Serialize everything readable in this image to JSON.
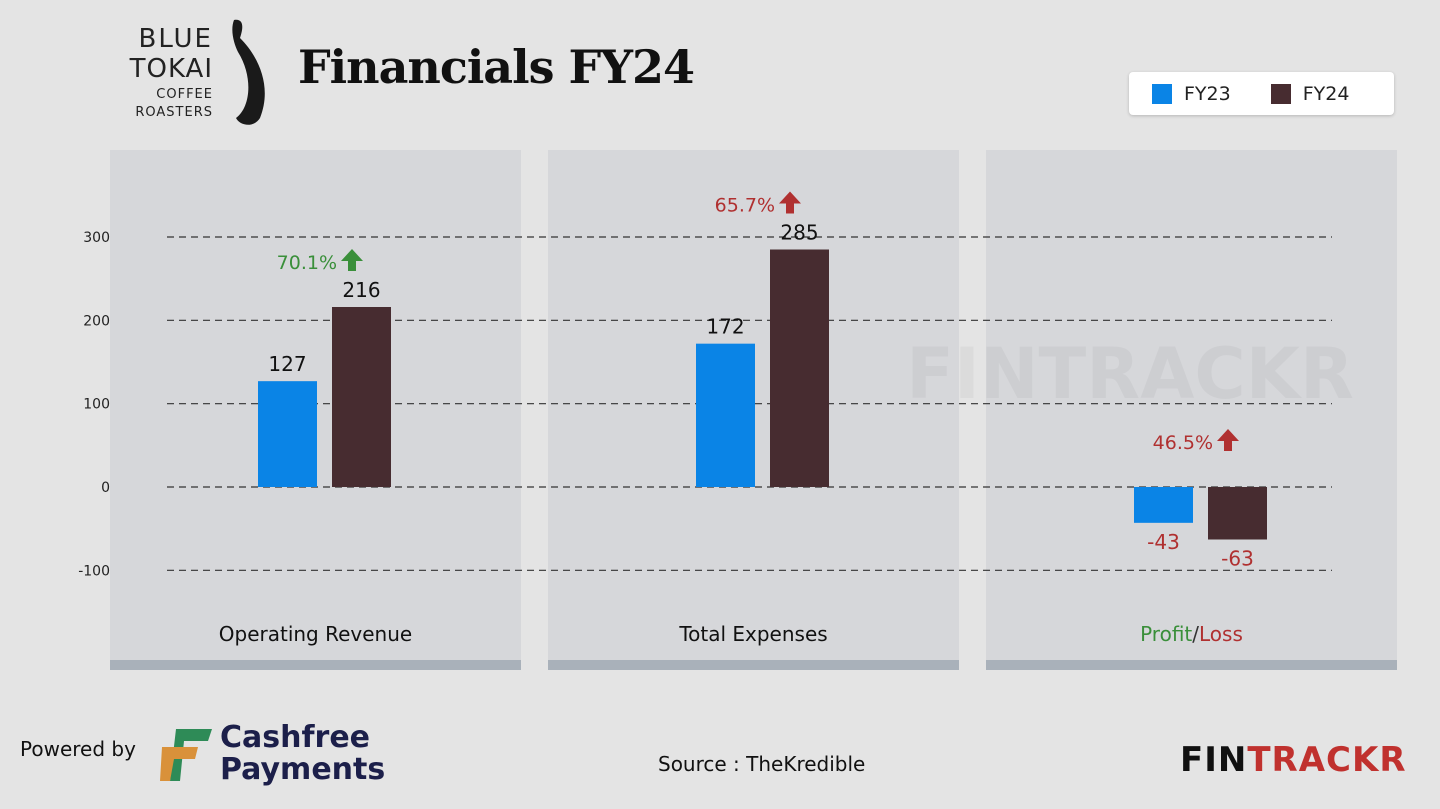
{
  "header": {
    "logo_text": [
      "BLUE",
      "TOKAI",
      "COFFEE",
      "ROASTERS"
    ],
    "title": "Financials FY24"
  },
  "legend": {
    "items": [
      {
        "label": "FY23",
        "color": "#0a84e6"
      },
      {
        "label": "FY24",
        "color": "#472c30"
      }
    ]
  },
  "chart_data": {
    "type": "bar",
    "panels": [
      {
        "label": "Operating Revenue",
        "values": [
          127,
          216
        ],
        "change": "70.1%",
        "change_color": "#3a8f3a"
      },
      {
        "label": "Total Expenses",
        "values": [
          172,
          285
        ],
        "change": "65.7%",
        "change_color": "#b03030"
      },
      {
        "label_parts": [
          {
            "text": "Profit",
            "color": "#3a8f3a"
          },
          {
            "text": "/",
            "color": "#333333"
          },
          {
            "text": "Loss",
            "color": "#b03030"
          }
        ],
        "values": [
          -43,
          -63
        ],
        "change": "46.5%",
        "change_color": "#b03030",
        "value_label_color": "#b03030"
      }
    ],
    "series": [
      {
        "name": "FY23",
        "color": "#0a84e6"
      },
      {
        "name": "FY24",
        "color": "#472c30"
      }
    ],
    "yticks": [
      "300",
      "200",
      "100",
      "0",
      "-100"
    ],
    "ytick_values": [
      300,
      200,
      100,
      0,
      -100
    ],
    "ylim": [
      -100,
      300
    ],
    "grid": true,
    "legend_position": "top-right",
    "watermark": "FINTRACKR"
  },
  "footer": {
    "powered_by": "Powered by",
    "cashfree_line1": "Cashfree",
    "cashfree_line2": "Payments",
    "source": "Source : TheKredible",
    "brand_fin": "FIN",
    "brand_trackr": "TRACKR"
  }
}
